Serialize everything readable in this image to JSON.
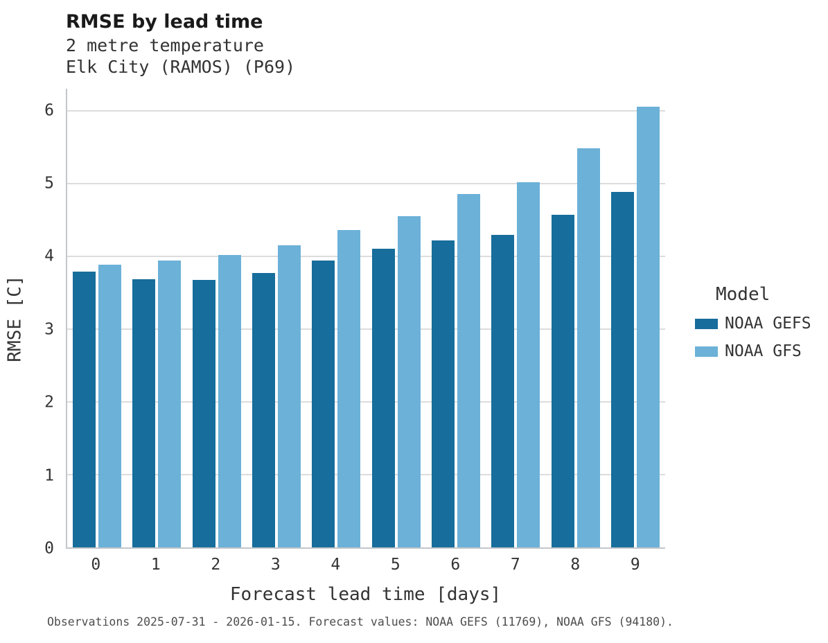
{
  "chart_data": {
    "type": "bar",
    "title": "RMSE by lead time",
    "subtitle": [
      "2 metre temperature",
      "Elk City (RAMOS) (P69)"
    ],
    "categories": [
      "0",
      "1",
      "2",
      "3",
      "4",
      "5",
      "6",
      "7",
      "8",
      "9"
    ],
    "series": [
      {
        "name": "NOAA GEFS",
        "color": "#176d9b",
        "values": [
          3.79,
          3.68,
          3.67,
          3.77,
          3.94,
          4.1,
          4.22,
          4.29,
          4.57,
          4.88
        ]
      },
      {
        "name": "NOAA GFS",
        "color": "#6cb1d8",
        "values": [
          3.88,
          3.94,
          4.02,
          4.15,
          4.36,
          4.55,
          4.85,
          5.02,
          5.48,
          6.05
        ]
      }
    ],
    "xlabel": "Forecast lead time [days]",
    "ylabel": "RMSE [C]",
    "ylim": [
      0,
      6.3
    ],
    "yticks": [
      0,
      1,
      2,
      3,
      4,
      5,
      6
    ],
    "grid": true,
    "legend_title": "Model",
    "legend_position": "right"
  },
  "caption": "Observations 2025-07-31 - 2026-01-15. Forecast values: NOAA GEFS (11769), NOAA GFS (94180)."
}
